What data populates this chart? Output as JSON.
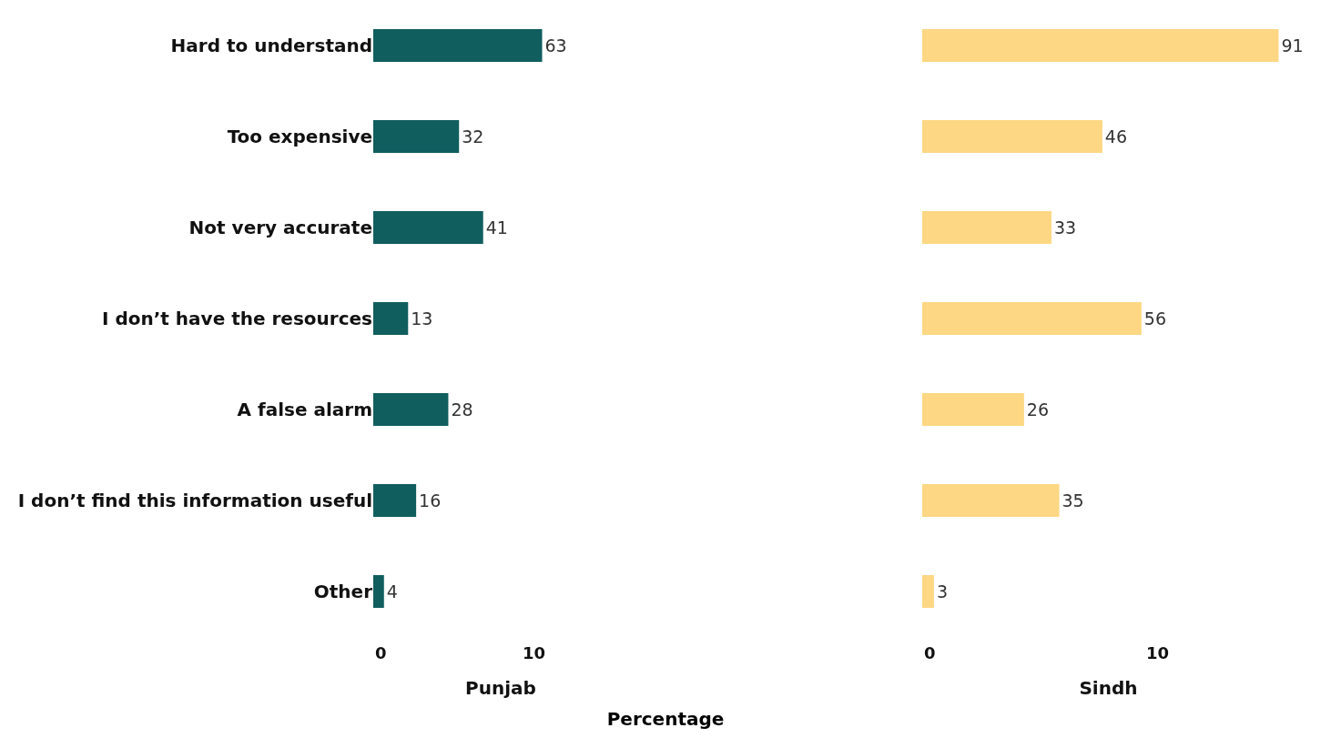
{
  "chart_data": [
    {
      "type": "bar",
      "orientation": "horizontal",
      "categories": [
        "Hard to understand",
        "Too expensive",
        "Not very accurate",
        "I don’t have the resources",
        "A false alarm",
        "I don’t find this information useful",
        "Other"
      ],
      "values": [
        63,
        32,
        41,
        13,
        28,
        16,
        4
      ],
      "color": "#115e5f",
      "data_labels": true,
      "xlabel": "Punjab",
      "annotations": [
        "0",
        "10",
        "Percentage"
      ]
    },
    {
      "type": "bar",
      "orientation": "horizontal",
      "categories": [
        null,
        null,
        null,
        null,
        null,
        null,
        null
      ],
      "values": [
        91,
        46,
        33,
        56,
        26,
        35,
        3
      ],
      "color": "#fdd783",
      "data_labels": true,
      "xlabel": "Sindh",
      "tick_labels": "x",
      "annotations": [
        "0",
        "10"
      ]
    }
  ]
}
